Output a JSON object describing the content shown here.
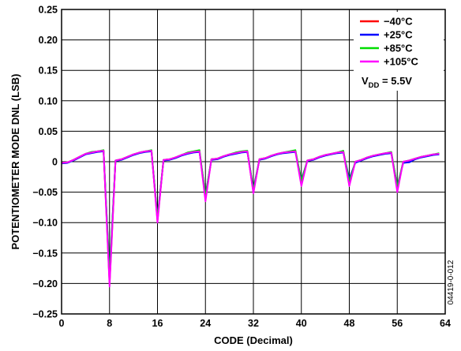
{
  "chart_data": {
    "type": "line",
    "xlabel": "CODE (Decimal)",
    "ylabel": "POTENTIOMETER MODE DNL (LSB)",
    "xlim": [
      0,
      64
    ],
    "ylim": [
      -0.25,
      0.25
    ],
    "x_ticks": [
      0,
      8,
      16,
      24,
      32,
      40,
      48,
      56,
      64
    ],
    "x_tick_labels": [
      "0",
      "8",
      "16",
      "24",
      "32",
      "40",
      "48",
      "56",
      "64"
    ],
    "y_ticks": [
      0.25,
      0.2,
      0.15,
      0.1,
      0.05,
      0,
      -0.05,
      -0.1,
      -0.15,
      -0.2,
      -0.25
    ],
    "y_tick_labels": [
      "0.25",
      "0.20",
      "0.15",
      "0.10",
      "0.05",
      "0",
      "−0.05",
      "−0.10",
      "−0.15",
      "−0.20",
      "−0.25"
    ],
    "grid": true,
    "legend_position": "top-right",
    "annotation_main": "V",
    "annotation_sub": "DD",
    "annotation_rest": " = 5.5V",
    "figure_id": "04419-0-012",
    "series": [
      {
        "name": "−40°C",
        "color": "#ff0000",
        "x": [
          0,
          1,
          2,
          3,
          4,
          5,
          6,
          7,
          8,
          9,
          10,
          11,
          12,
          13,
          14,
          15,
          16,
          17,
          18,
          19,
          20,
          21,
          22,
          23,
          24,
          25,
          26,
          27,
          28,
          29,
          30,
          31,
          32,
          33,
          34,
          35,
          36,
          37,
          38,
          39,
          40,
          41,
          42,
          43,
          44,
          45,
          46,
          47,
          48,
          49,
          50,
          51,
          52,
          53,
          54,
          55,
          56,
          57,
          58,
          59,
          60,
          61,
          62,
          63
        ],
        "values": [
          -0.002,
          -0.001,
          0.003,
          0.008,
          0.013,
          0.015,
          0.017,
          0.018,
          -0.2,
          0.002,
          0.004,
          0.008,
          0.012,
          0.015,
          0.017,
          0.018,
          -0.097,
          0.003,
          0.004,
          0.007,
          0.011,
          0.014,
          0.016,
          0.017,
          -0.06,
          0.004,
          0.005,
          0.009,
          0.012,
          0.014,
          0.016,
          0.017,
          -0.05,
          0.004,
          0.006,
          0.01,
          0.013,
          0.015,
          0.016,
          0.018,
          -0.035,
          0.002,
          0.004,
          0.008,
          0.011,
          0.013,
          0.015,
          0.017,
          -0.038,
          0.0,
          0.003,
          0.007,
          0.01,
          0.012,
          0.014,
          0.015,
          -0.045,
          0.0,
          0.002,
          0.005,
          0.008,
          0.01,
          0.012,
          0.013
        ]
      },
      {
        "name": "+25°C",
        "color": "#0000ff",
        "x": [
          0,
          1,
          2,
          3,
          4,
          5,
          6,
          7,
          8,
          9,
          10,
          11,
          12,
          13,
          14,
          15,
          16,
          17,
          18,
          19,
          20,
          21,
          22,
          23,
          24,
          25,
          26,
          27,
          28,
          29,
          30,
          31,
          32,
          33,
          34,
          35,
          36,
          37,
          38,
          39,
          40,
          41,
          42,
          43,
          44,
          45,
          46,
          47,
          48,
          49,
          50,
          51,
          52,
          53,
          54,
          55,
          56,
          57,
          58,
          59,
          60,
          61,
          62,
          63
        ],
        "values": [
          -0.003,
          -0.002,
          0.002,
          0.007,
          0.012,
          0.014,
          0.016,
          0.017,
          -0.185,
          0.001,
          0.003,
          0.007,
          0.011,
          0.014,
          0.016,
          0.017,
          -0.092,
          0.002,
          0.003,
          0.006,
          0.01,
          0.013,
          0.015,
          0.016,
          -0.055,
          0.003,
          0.004,
          0.008,
          0.011,
          0.013,
          0.015,
          0.016,
          -0.045,
          0.003,
          0.005,
          0.009,
          0.012,
          0.014,
          0.015,
          0.016,
          -0.03,
          0.001,
          0.003,
          0.007,
          0.01,
          0.012,
          0.014,
          0.015,
          -0.028,
          -0.002,
          0.002,
          0.006,
          0.009,
          0.011,
          0.013,
          0.014,
          -0.04,
          -0.002,
          -0.001,
          0.004,
          0.007,
          0.009,
          0.011,
          0.012
        ]
      },
      {
        "name": "+85°C",
        "color": "#00dd00",
        "x": [
          0,
          1,
          2,
          3,
          4,
          5,
          6,
          7,
          8,
          9,
          10,
          11,
          12,
          13,
          14,
          15,
          16,
          17,
          18,
          19,
          20,
          21,
          22,
          23,
          24,
          25,
          26,
          27,
          28,
          29,
          30,
          31,
          32,
          33,
          34,
          35,
          36,
          37,
          38,
          39,
          40,
          41,
          42,
          43,
          44,
          45,
          46,
          47,
          48,
          49,
          50,
          51,
          52,
          53,
          54,
          55,
          56,
          57,
          58,
          59,
          60,
          61,
          62,
          63
        ],
        "values": [
          -0.002,
          -0.001,
          0.003,
          0.008,
          0.013,
          0.016,
          0.017,
          0.019,
          -0.19,
          0.002,
          0.004,
          0.008,
          0.012,
          0.015,
          0.017,
          0.019,
          -0.094,
          0.003,
          0.004,
          0.007,
          0.011,
          0.015,
          0.017,
          0.019,
          -0.057,
          0.004,
          0.005,
          0.009,
          0.012,
          0.015,
          0.017,
          0.018,
          -0.047,
          0.004,
          0.006,
          0.01,
          0.013,
          0.015,
          0.017,
          0.019,
          -0.032,
          0.002,
          0.004,
          0.008,
          0.011,
          0.013,
          0.015,
          0.018,
          -0.033,
          0.0,
          0.003,
          0.007,
          0.01,
          0.012,
          0.014,
          0.016,
          -0.042,
          0.0,
          0.002,
          0.005,
          0.008,
          0.01,
          0.012,
          0.014
        ]
      },
      {
        "name": "+105°C",
        "color": "#ff00ff",
        "x": [
          0,
          1,
          2,
          3,
          4,
          5,
          6,
          7,
          8,
          9,
          10,
          11,
          12,
          13,
          14,
          15,
          16,
          17,
          18,
          19,
          20,
          21,
          22,
          23,
          24,
          25,
          26,
          27,
          28,
          29,
          30,
          31,
          32,
          33,
          34,
          35,
          36,
          37,
          38,
          39,
          40,
          41,
          42,
          43,
          44,
          45,
          46,
          47,
          48,
          49,
          50,
          51,
          52,
          53,
          54,
          55,
          56,
          57,
          58,
          59,
          60,
          61,
          62,
          63
        ],
        "values": [
          -0.002,
          -0.001,
          0.003,
          0.008,
          0.013,
          0.015,
          0.017,
          0.018,
          -0.205,
          0.002,
          0.004,
          0.008,
          0.012,
          0.015,
          0.017,
          0.018,
          -0.1,
          0.003,
          0.004,
          0.007,
          0.011,
          0.014,
          0.016,
          0.017,
          -0.065,
          0.004,
          0.005,
          0.009,
          0.012,
          0.014,
          0.016,
          0.017,
          -0.052,
          0.004,
          0.006,
          0.01,
          0.013,
          0.015,
          0.016,
          0.017,
          -0.04,
          0.002,
          0.004,
          0.008,
          0.011,
          0.013,
          0.015,
          0.016,
          -0.04,
          0.0,
          0.003,
          0.007,
          0.01,
          0.012,
          0.014,
          0.015,
          -0.05,
          0.0,
          0.002,
          0.005,
          0.008,
          0.01,
          0.012,
          0.013
        ]
      }
    ]
  }
}
